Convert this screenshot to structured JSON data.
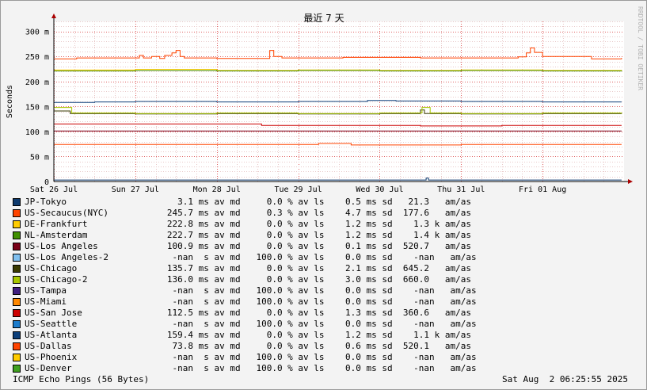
{
  "chart_data": {
    "type": "line",
    "title": "最近 7 天",
    "ylabel": "Seconds",
    "watermark": "RRDTOOL / TOBI OETIKER",
    "ylim": [
      0,
      320
    ],
    "y_ticks": [
      {
        "v": 0,
        "label": "0"
      },
      {
        "v": 50,
        "label": "50 m"
      },
      {
        "v": 100,
        "label": "100 m"
      },
      {
        "v": 150,
        "label": "150 m"
      },
      {
        "v": 200,
        "label": "200 m"
      },
      {
        "v": 250,
        "label": "250 m"
      },
      {
        "v": 300,
        "label": "300 m"
      }
    ],
    "x_range_days": [
      0,
      7
    ],
    "x_ticks": [
      {
        "d": 0,
        "label": "Sat 26 Jul"
      },
      {
        "d": 1,
        "label": "Sun 27 Jul"
      },
      {
        "d": 2,
        "label": "Mon 28 Jul"
      },
      {
        "d": 3,
        "label": "Tue 29 Jul"
      },
      {
        "d": 4,
        "label": "Wed 30 Jul"
      },
      {
        "d": 5,
        "label": "Thu 31 Jul"
      },
      {
        "d": 6,
        "label": "Fri 01 Aug"
      }
    ],
    "grid": true,
    "series": [
      {
        "name": "JP-Tokyo",
        "color": "#0e3a6e",
        "stats": "     3.1 ms av md     0.0 % av ls    0.5 ms sd   21.3   am/as",
        "points": [
          [
            0,
            3
          ],
          [
            4.55,
            3
          ],
          [
            4.57,
            7
          ],
          [
            4.6,
            3
          ],
          [
            6.97,
            3
          ]
        ]
      },
      {
        "name": "US-Secaucus(NYC)",
        "color": "#ff4400",
        "stats": "   245.7 ms av md     0.3 % av ls    4.7 ms sd  177.6   am/as",
        "points": [
          [
            0,
            245
          ],
          [
            0.25,
            245
          ],
          [
            0.28,
            247
          ],
          [
            1.0,
            247
          ],
          [
            1.05,
            252
          ],
          [
            1.1,
            247
          ],
          [
            1.2,
            250
          ],
          [
            1.3,
            246
          ],
          [
            1.36,
            252
          ],
          [
            1.45,
            257
          ],
          [
            1.5,
            262
          ],
          [
            1.55,
            250
          ],
          [
            1.6,
            247
          ],
          [
            2.0,
            246
          ],
          [
            2.62,
            246
          ],
          [
            2.65,
            262
          ],
          [
            2.7,
            250
          ],
          [
            2.8,
            247
          ],
          [
            3.5,
            247
          ],
          [
            3.55,
            248
          ],
          [
            4.5,
            247
          ],
          [
            5.5,
            247
          ],
          [
            5.7,
            249
          ],
          [
            5.8,
            257
          ],
          [
            5.85,
            267
          ],
          [
            5.9,
            258
          ],
          [
            6.0,
            250
          ],
          [
            6.5,
            250
          ],
          [
            6.6,
            245
          ],
          [
            6.97,
            247
          ]
        ]
      },
      {
        "name": "DE-Frankfurt",
        "color": "#ffcc00",
        "stats": "   222.8 ms av md     0.0 % av ls    1.2 ms sd    1.3 k am/as",
        "points": [
          [
            0,
            223
          ],
          [
            1,
            224
          ],
          [
            2,
            222
          ],
          [
            3,
            223
          ],
          [
            4,
            222
          ],
          [
            5,
            223
          ],
          [
            6,
            222
          ],
          [
            6.97,
            223
          ]
        ]
      },
      {
        "name": "NL-Amsterdam",
        "color": "#409000",
        "stats": "   222.7 ms av md     0.0 % av ls    1.2 ms sd    1.4 k am/as",
        "points": [
          [
            0,
            221
          ],
          [
            1,
            222
          ],
          [
            2,
            221
          ],
          [
            3,
            222
          ],
          [
            4,
            221
          ],
          [
            5,
            222
          ],
          [
            6,
            221
          ],
          [
            6.97,
            222
          ]
        ]
      },
      {
        "name": "US-Los Angeles",
        "color": "#7a0018",
        "stats": "   100.9 ms av md     0.0 % av ls    0.1 ms sd  520.7   am/as",
        "points": [
          [
            0,
            101
          ],
          [
            6.97,
            101
          ]
        ]
      },
      {
        "name": "US-Los Angeles-2",
        "color": "#80c0f0",
        "stats": "    -nan  s av md   100.0 % av ls    0.0 ms sd    -nan   am/as",
        "points": []
      },
      {
        "name": "US-Chicago",
        "color": "#3a3a00",
        "stats": "   135.7 ms av md     0.0 % av ls    2.1 ms sd  645.2   am/as",
        "points": [
          [
            0,
            141
          ],
          [
            0.2,
            136
          ],
          [
            1,
            135
          ],
          [
            2,
            136
          ],
          [
            3,
            135
          ],
          [
            4,
            136
          ],
          [
            4.45,
            136
          ],
          [
            4.5,
            143
          ],
          [
            4.55,
            136
          ],
          [
            5,
            135
          ],
          [
            6,
            136
          ],
          [
            6.97,
            135
          ]
        ]
      },
      {
        "name": "US-Chicago-2",
        "color": "#a8c800",
        "stats": "   136.0 ms av md     0.0 % av ls    3.0 ms sd  660.0   am/as",
        "points": [
          [
            0,
            148
          ],
          [
            0.2,
            148
          ],
          [
            0.22,
            137
          ],
          [
            1,
            136
          ],
          [
            2,
            137
          ],
          [
            3,
            136
          ],
          [
            4,
            137
          ],
          [
            4.5,
            137
          ],
          [
            4.52,
            148
          ],
          [
            4.6,
            148
          ],
          [
            4.62,
            137
          ],
          [
            5,
            136
          ],
          [
            6,
            137
          ],
          [
            6.97,
            136
          ]
        ]
      },
      {
        "name": "US-Tampa",
        "color": "#402080",
        "stats": "    -nan  s av md   100.0 % av ls    0.0 ms sd    -nan   am/as",
        "points": []
      },
      {
        "name": "US-Miami",
        "color": "#ff8800",
        "stats": "    -nan  s av md   100.0 % av ls    0.0 ms sd    -nan   am/as",
        "points": []
      },
      {
        "name": "US-San Jose",
        "color": "#cc0000",
        "stats": "   112.5 ms av md     0.0 % av ls    1.3 ms sd  360.6   am/as",
        "points": [
          [
            0,
            115
          ],
          [
            2.5,
            115
          ],
          [
            2.55,
            112
          ],
          [
            3.5,
            112
          ],
          [
            4.5,
            111
          ],
          [
            5.5,
            112
          ],
          [
            6.97,
            112
          ]
        ]
      },
      {
        "name": "US-Seattle",
        "color": "#1c7ccc",
        "stats": "    -nan  s av md   100.0 % av ls    0.0 ms sd    -nan   am/as",
        "points": []
      },
      {
        "name": "US-Atlanta",
        "color": "#0c3f7a",
        "stats": "   159.4 ms av md     0.0 % av ls    1.2 ms sd    1.1 k am/as",
        "points": [
          [
            0,
            158
          ],
          [
            0.5,
            159
          ],
          [
            1,
            160
          ],
          [
            2,
            159
          ],
          [
            3,
            160
          ],
          [
            3.8,
            160
          ],
          [
            3.85,
            162
          ],
          [
            4.2,
            161
          ],
          [
            5,
            160
          ],
          [
            6,
            159
          ],
          [
            6.97,
            159
          ]
        ]
      },
      {
        "name": "US-Dallas",
        "color": "#ff4400",
        "stats": "    73.8 ms av md     0.0 % av ls    0.6 ms sd  520.1   am/as",
        "points": [
          [
            0,
            74
          ],
          [
            3.2,
            74
          ],
          [
            3.25,
            76
          ],
          [
            3.6,
            76
          ],
          [
            3.65,
            73
          ],
          [
            5,
            74
          ],
          [
            6.97,
            74
          ]
        ]
      },
      {
        "name": "US-Phoenix",
        "color": "#ffcc00",
        "stats": "    -nan  s av md   100.0 % av ls    0.0 ms sd    -nan   am/as",
        "points": []
      },
      {
        "name": "US-Denver",
        "color": "#40a020",
        "stats": "    -nan  s av md   100.0 % av ls    0.0 ms sd    -nan   am/as",
        "points": []
      }
    ]
  },
  "footer": {
    "left": "ICMP Echo Pings (56 Bytes)",
    "right": "Sat Aug  2 06:25:55 2025"
  }
}
